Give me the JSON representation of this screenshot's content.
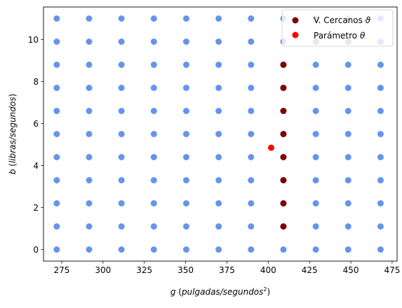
{
  "chart_data": {
    "type": "scatter",
    "xlabel": "g (pulgadas/segundos²)",
    "ylabel": "b (libras/segundos)",
    "xlim": [
      264,
      478
    ],
    "ylim": [
      -0.55,
      11.55
    ],
    "xticks": [
      275,
      300,
      325,
      350,
      375,
      400,
      425,
      450,
      475
    ],
    "yticks": [
      0,
      2,
      4,
      6,
      8,
      10
    ],
    "grid": false,
    "legend_placement": "top-right",
    "series": [
      {
        "color": "#6495ed",
        "grid_x": [
          272.0,
          291.6,
          311.2,
          330.8,
          350.4,
          370.0,
          389.6,
          409.2,
          428.8,
          448.4,
          468.0
        ],
        "grid_y": [
          0.0,
          1.1,
          2.2,
          3.3,
          4.4,
          5.5,
          6.6,
          7.7,
          8.8,
          9.9,
          11.0
        ],
        "x": [],
        "y": []
      },
      {
        "name": "V. Cercanos ϑ",
        "color": "#800000",
        "x": [
          409.2,
          409.2,
          409.2,
          409.2,
          409.2,
          409.2,
          409.2,
          409.2
        ],
        "y": [
          1.1,
          2.2,
          3.3,
          4.4,
          5.5,
          6.6,
          7.7,
          8.8
        ]
      },
      {
        "name": "Parámetro θ",
        "color": "#ff0000",
        "x": [
          401.8
        ],
        "y": [
          4.85
        ]
      }
    ]
  }
}
